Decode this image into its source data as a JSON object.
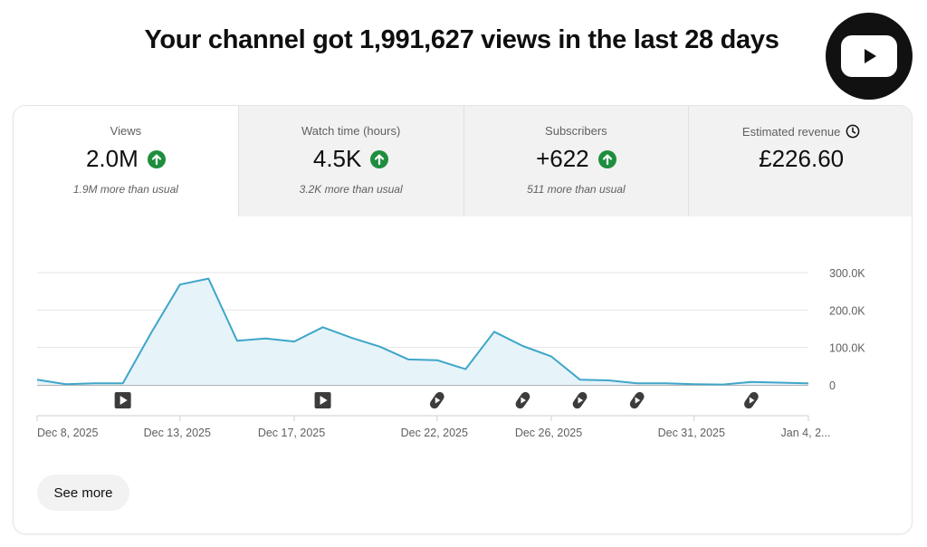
{
  "headline": "Your channel got 1,991,627 views in the last 28 days",
  "brand": {
    "icon": "youtube-play-icon",
    "color": "#111111"
  },
  "tabs": [
    {
      "label": "Views",
      "value": "2.0M",
      "trend": "up",
      "note": "1.9M more than usual"
    },
    {
      "label": "Watch time (hours)",
      "value": "4.5K",
      "trend": "up",
      "note": "3.2K more than usual"
    },
    {
      "label": "Subscribers",
      "value": "+622",
      "trend": "up",
      "note": "511 more than usual"
    },
    {
      "label": "Estimated revenue",
      "value": "£226.60",
      "trend": "",
      "note": "",
      "label_icon": "clock-icon"
    }
  ],
  "colors": {
    "line": "#3ea6c9",
    "fill": "#e6f3f9",
    "trend_up": "#1e8e3e",
    "inactive_tab": "#f2f2f2"
  },
  "chart_data": {
    "type": "area",
    "series": [
      {
        "values": [
          14,
          2,
          4,
          4,
          140,
          268,
          284,
          118,
          124,
          116,
          154,
          126,
          102,
          68,
          66,
          42,
          142,
          104,
          76,
          14,
          12,
          4,
          4,
          2,
          1,
          8,
          6,
          4
        ]
      }
    ],
    "x_tick_labels": [
      {
        "label": "Dec 8, 2025",
        "index": 0
      },
      {
        "label": "Dec 13, 2025",
        "index": 5
      },
      {
        "label": "Dec 17, 2025",
        "index": 9
      },
      {
        "label": "Dec 22, 2025",
        "index": 14
      },
      {
        "label": "Dec 26, 2025",
        "index": 18
      },
      {
        "label": "Dec 31, 2025",
        "index": 23
      },
      {
        "label": "Jan 4, 2...",
        "index": 27
      }
    ],
    "y_ticks": [
      {
        "value": 0,
        "label": "0"
      },
      {
        "value": 100,
        "label": "100.0K"
      },
      {
        "value": 200,
        "label": "200.0K"
      },
      {
        "value": 300,
        "label": "300.0K"
      }
    ],
    "ylim": [
      0,
      300
    ],
    "grid": true,
    "upload_markers": [
      {
        "type": "video",
        "index": 3
      },
      {
        "type": "video",
        "index": 10
      },
      {
        "type": "short",
        "index": 14
      },
      {
        "type": "short",
        "index": 17
      },
      {
        "type": "short",
        "index": 19
      },
      {
        "type": "short",
        "index": 21
      },
      {
        "type": "short",
        "index": 25
      }
    ]
  },
  "actions": {
    "see_more": "See more"
  }
}
